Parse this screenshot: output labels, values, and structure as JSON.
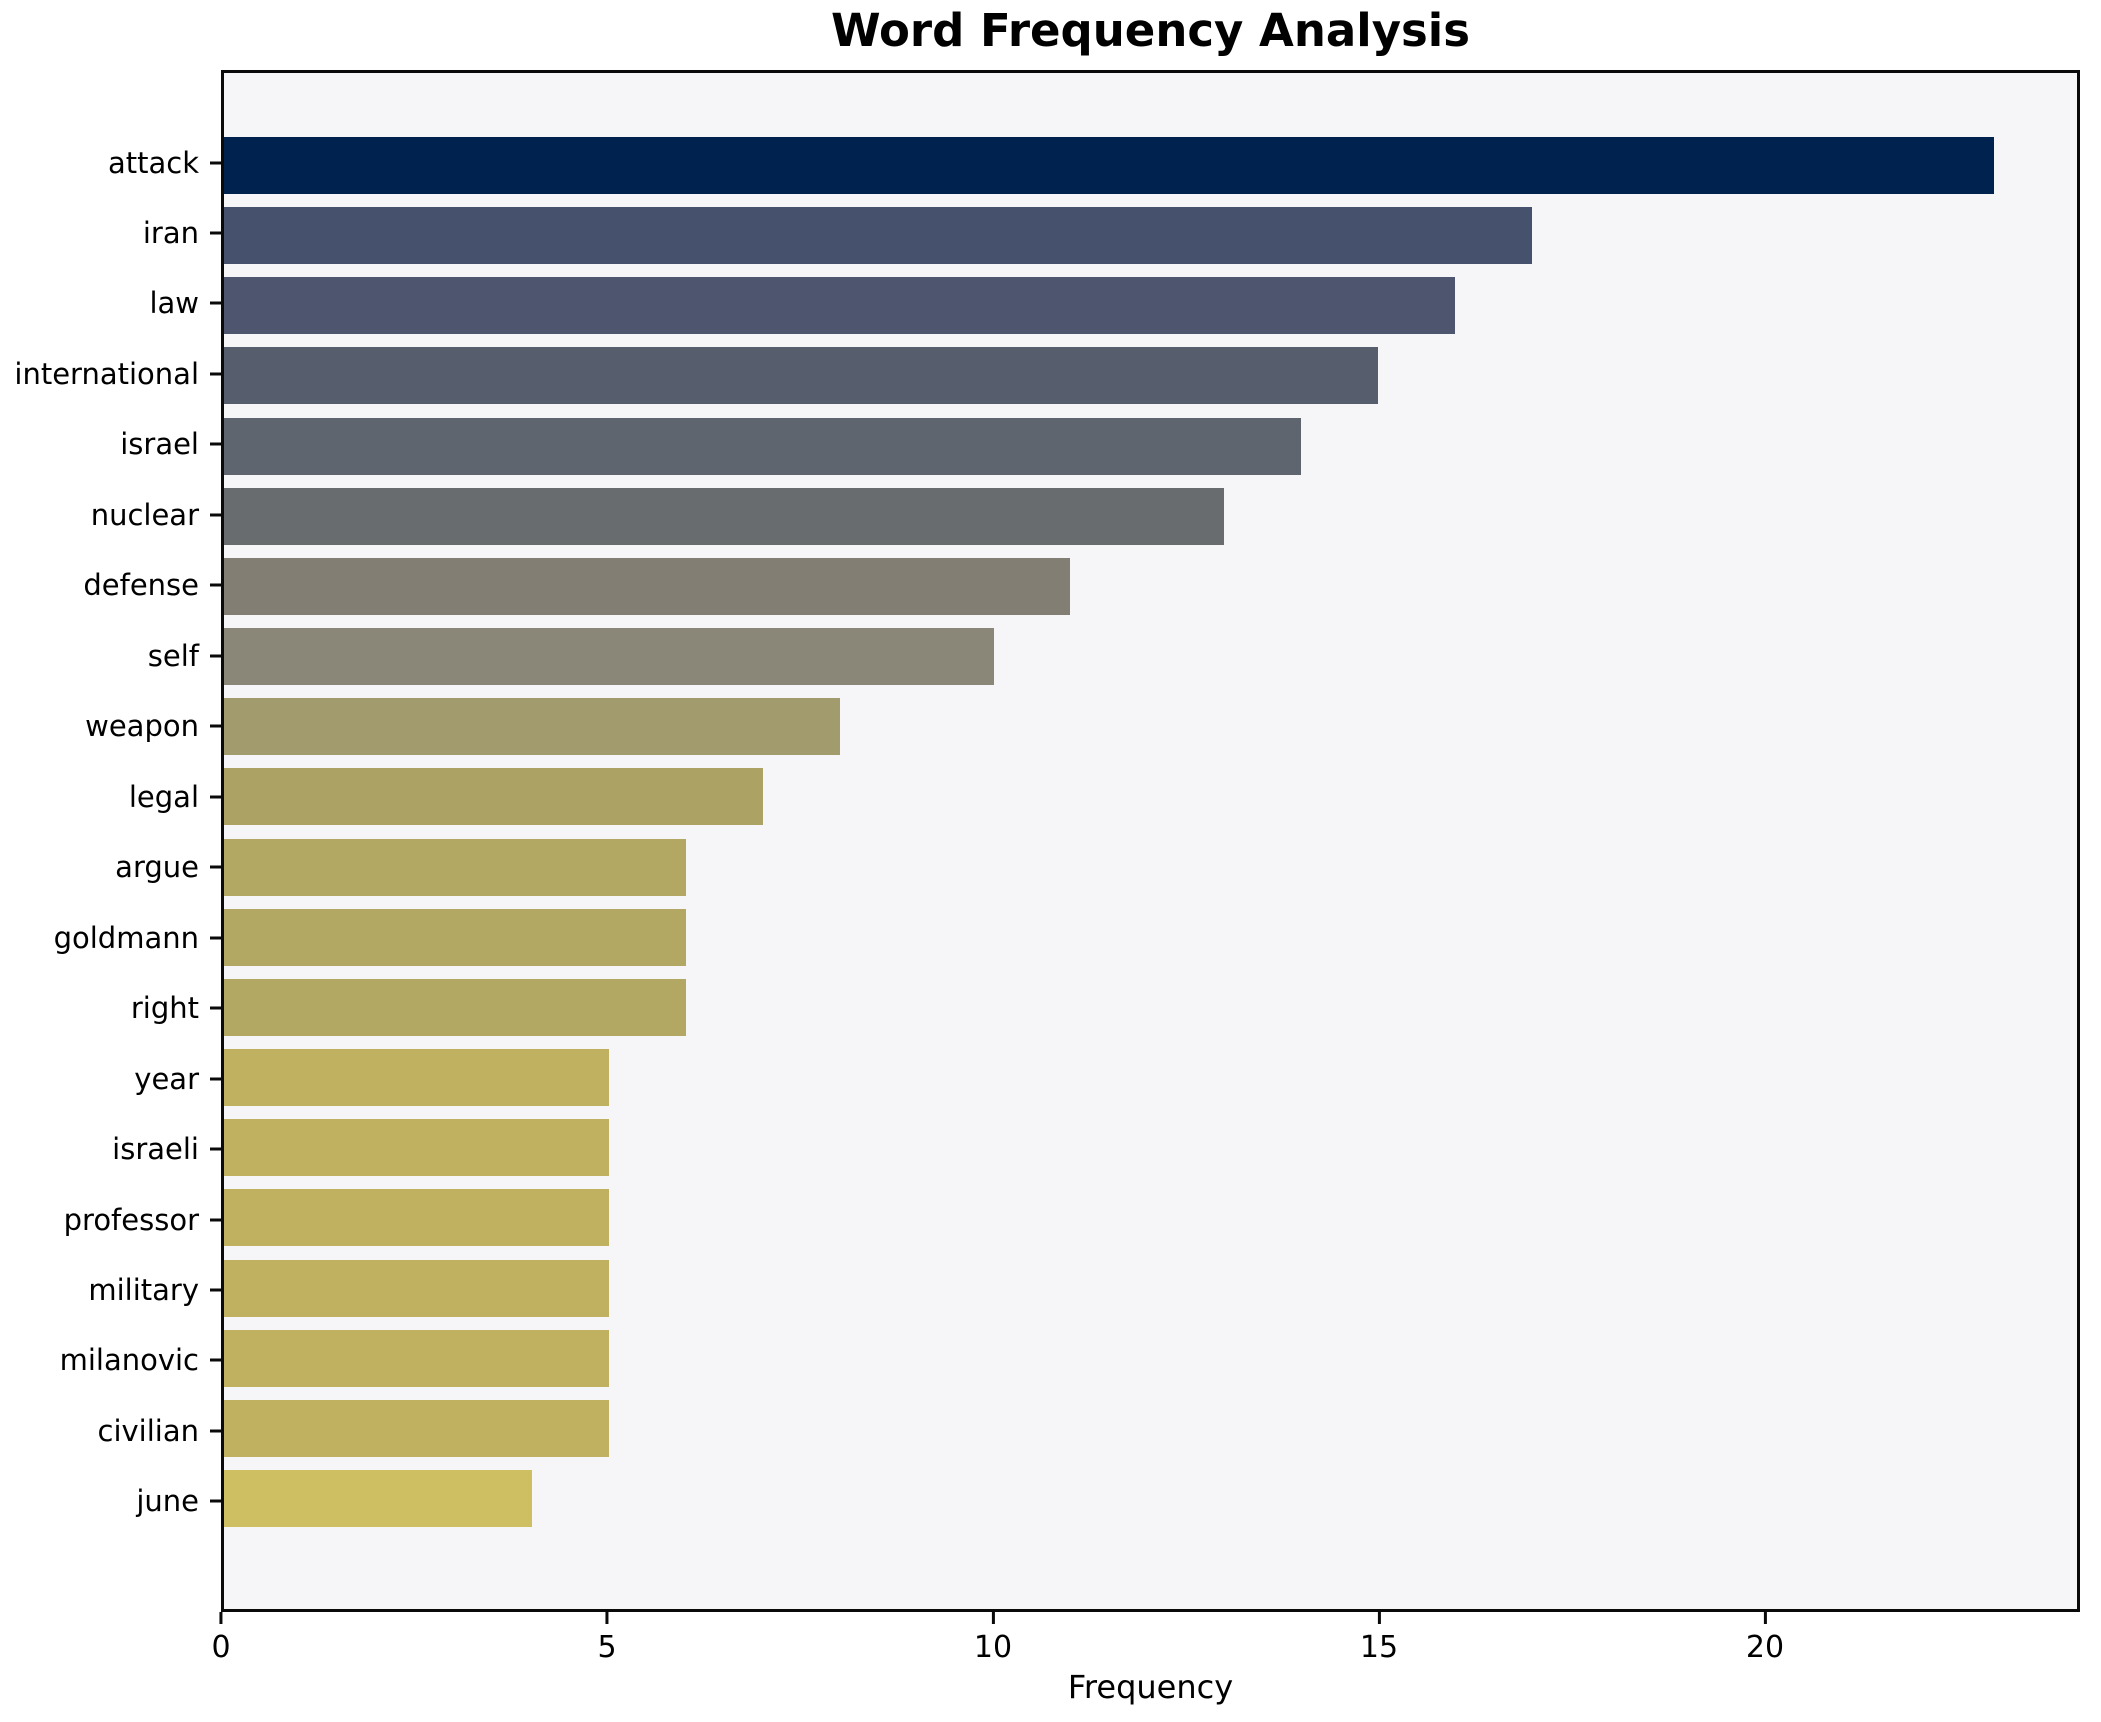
{
  "title": "Word Frequency Analysis",
  "chart_data": {
    "type": "bar",
    "orientation": "horizontal",
    "title": "Word Frequency Analysis",
    "xlabel": "Frequency",
    "ylabel": "",
    "categories": [
      "attack",
      "iran",
      "law",
      "international",
      "israel",
      "nuclear",
      "defense",
      "self",
      "weapon",
      "legal",
      "argue",
      "goldmann",
      "right",
      "year",
      "israeli",
      "professor",
      "military",
      "milanovic",
      "civilian",
      "june"
    ],
    "values": [
      23,
      17,
      16,
      15,
      14,
      13,
      11,
      10,
      8,
      7,
      6,
      6,
      6,
      5,
      5,
      5,
      5,
      5,
      5,
      4
    ],
    "bar_colors": [
      "#00224e",
      "#46516e",
      "#4d566e",
      "#565e6e",
      "#5f656f",
      "#696c6e",
      "#827e74",
      "#8b8778",
      "#a29b6e",
      "#aba264",
      "#b2a863",
      "#b2a863",
      "#b2a863",
      "#c0b161",
      "#c0b161",
      "#c0b161",
      "#c0b161",
      "#c0b161",
      "#c0b161",
      "#cdbf62"
    ],
    "xlim": [
      0,
      24.08
    ],
    "xticks": [
      0,
      5,
      10,
      15,
      20
    ],
    "grid": false,
    "legend_position": "none"
  },
  "colors": {
    "figure_bg": "#ffffff",
    "plot_bg": "#f6f6f8",
    "spine": "#0a0a0a",
    "text": "#000000"
  }
}
